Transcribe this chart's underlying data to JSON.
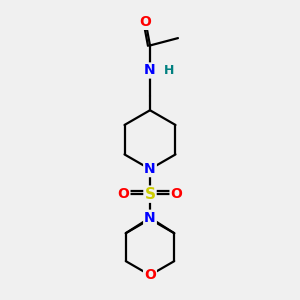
{
  "bg_color": "#f0f0f0",
  "atom_color_N": "#0000ff",
  "atom_color_O": "#ff0000",
  "atom_color_S": "#cccc00",
  "atom_color_H": "#008080",
  "line_color": "#000000",
  "line_width": 1.6,
  "font_size_atoms": 10,
  "fig_width": 3.0,
  "fig_height": 3.0,
  "dpi": 100,
  "xlim": [
    0,
    10
  ],
  "ylim": [
    0,
    10
  ]
}
